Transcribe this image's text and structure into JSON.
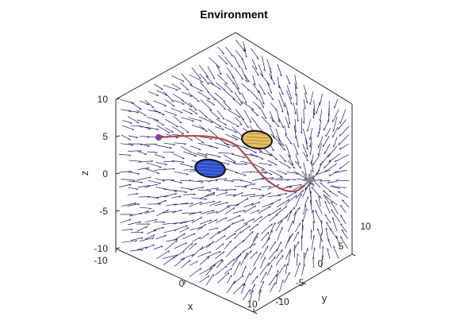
{
  "chart_data": {
    "type": "3d-quiver",
    "title": "Environment",
    "xlabel": "x",
    "ylabel": "y",
    "zlabel": "z",
    "xlim": [
      -10,
      10
    ],
    "ylim": [
      -10,
      10
    ],
    "zlim": [
      -10,
      10
    ],
    "x_ticks": [
      "-10",
      "0",
      "10"
    ],
    "y_ticks": [
      "-10",
      "-5",
      "0",
      "5",
      "10"
    ],
    "z_ticks": [
      "10",
      "5",
      "0",
      "-5",
      "-10"
    ],
    "grid": false,
    "box": true,
    "vector_field": {
      "description_color": "#1a1a6e",
      "sink_point": [
        2,
        8,
        -2
      ]
    },
    "trajectory": {
      "color": "#b04a4a",
      "start": [
        -10,
        -5,
        5
      ],
      "end": [
        2,
        8,
        -2
      ],
      "start_marker_color": "#8a3aa0",
      "end_marker_color": "#888888"
    },
    "obstacles": [
      {
        "name": "obstacle-blue",
        "color": "#2d4fd0",
        "center": [
          -3,
          2,
          0
        ]
      },
      {
        "name": "obstacle-yellow",
        "color": "#e8c060",
        "center": [
          2,
          2,
          6
        ]
      }
    ]
  }
}
